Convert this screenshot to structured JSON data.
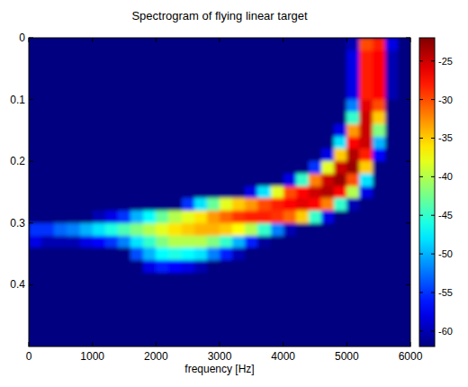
{
  "chart_data": {
    "type": "heatmap",
    "title": "Spectrogram of flying linear target",
    "xlabel": "frequency [Hz]",
    "xlim": [
      0,
      6000
    ],
    "xticks": [
      0,
      1000,
      2000,
      3000,
      4000,
      5000,
      6000
    ],
    "ylim": [
      0.5,
      0
    ],
    "yticks": [
      0,
      0.1,
      0.2,
      0.3,
      0.4
    ],
    "colorbar": {
      "range": [
        -62,
        -22
      ],
      "ticks": [
        -60,
        -55,
        -50,
        -45,
        -40,
        -35,
        -30,
        -25
      ]
    },
    "cells": [
      [
        -62,
        -62,
        -62,
        -62,
        -62,
        -62,
        -62,
        -62,
        -62,
        -62,
        -62,
        -62,
        -62,
        -62,
        -62,
        -62,
        -62,
        -62,
        -62,
        -62,
        -62,
        -62,
        -62,
        -62,
        -62,
        -60,
        -30,
        -28,
        -58,
        -62
      ],
      [
        -62,
        -62,
        -62,
        -62,
        -62,
        -62,
        -62,
        -62,
        -62,
        -62,
        -62,
        -62,
        -62,
        -62,
        -62,
        -62,
        -62,
        -62,
        -62,
        -62,
        -62,
        -62,
        -62,
        -62,
        -62,
        -58,
        -28,
        -27,
        -60,
        -62
      ],
      [
        -62,
        -62,
        -62,
        -62,
        -62,
        -62,
        -62,
        -62,
        -62,
        -62,
        -62,
        -62,
        -62,
        -62,
        -62,
        -62,
        -62,
        -62,
        -62,
        -62,
        -62,
        -62,
        -62,
        -62,
        -62,
        -58,
        -28,
        -27,
        -60,
        -62
      ],
      [
        -62,
        -62,
        -62,
        -62,
        -62,
        -62,
        -62,
        -62,
        -62,
        -62,
        -62,
        -62,
        -62,
        -62,
        -62,
        -62,
        -62,
        -62,
        -62,
        -62,
        -62,
        -62,
        -62,
        -62,
        -62,
        -58,
        -28,
        -27,
        -60,
        -62
      ],
      [
        -62,
        -62,
        -62,
        -62,
        -62,
        -62,
        -62,
        -62,
        -62,
        -62,
        -62,
        -62,
        -62,
        -62,
        -62,
        -62,
        -62,
        -62,
        -62,
        -62,
        -62,
        -62,
        -62,
        -62,
        -62,
        -58,
        -28,
        -27,
        -60,
        -62
      ],
      [
        -62,
        -62,
        -62,
        -62,
        -62,
        -62,
        -62,
        -62,
        -62,
        -62,
        -62,
        -62,
        -62,
        -62,
        -62,
        -62,
        -62,
        -62,
        -62,
        -62,
        -62,
        -62,
        -62,
        -62,
        -62,
        -52,
        -26,
        -30,
        -62,
        -62
      ],
      [
        -62,
        -62,
        -62,
        -62,
        -62,
        -62,
        -62,
        -62,
        -62,
        -62,
        -62,
        -62,
        -62,
        -62,
        -62,
        -62,
        -62,
        -62,
        -62,
        -62,
        -62,
        -62,
        -62,
        -62,
        -62,
        -45,
        -25,
        -35,
        -62,
        -62
      ],
      [
        -62,
        -62,
        -62,
        -62,
        -62,
        -62,
        -62,
        -62,
        -62,
        -62,
        -62,
        -62,
        -62,
        -62,
        -62,
        -62,
        -62,
        -62,
        -62,
        -62,
        -62,
        -62,
        -62,
        -62,
        -58,
        -33,
        -25,
        -42,
        -62,
        -62
      ],
      [
        -62,
        -62,
        -62,
        -62,
        -62,
        -62,
        -62,
        -62,
        -62,
        -62,
        -62,
        -62,
        -62,
        -62,
        -62,
        -62,
        -62,
        -62,
        -62,
        -62,
        -62,
        -62,
        -62,
        -62,
        -48,
        -27,
        -25,
        -50,
        -62,
        -62
      ],
      [
        -62,
        -62,
        -62,
        -62,
        -62,
        -62,
        -62,
        -62,
        -62,
        -62,
        -62,
        -62,
        -62,
        -62,
        -62,
        -62,
        -62,
        -62,
        -62,
        -62,
        -62,
        -62,
        -62,
        -58,
        -35,
        -24,
        -28,
        -57,
        -62,
        -62
      ],
      [
        -62,
        -62,
        -62,
        -62,
        -62,
        -62,
        -62,
        -62,
        -62,
        -62,
        -62,
        -62,
        -62,
        -62,
        -62,
        -62,
        -62,
        -62,
        -62,
        -62,
        -62,
        -62,
        -55,
        -38,
        -25,
        -23,
        -35,
        -62,
        -62,
        -62
      ],
      [
        -62,
        -62,
        -62,
        -62,
        -62,
        -62,
        -62,
        -62,
        -62,
        -62,
        -62,
        -62,
        -62,
        -62,
        -62,
        -62,
        -62,
        -62,
        -62,
        -62,
        -58,
        -45,
        -32,
        -25,
        -23,
        -30,
        -48,
        -62,
        -62,
        -62
      ],
      [
        -62,
        -62,
        -62,
        -62,
        -62,
        -62,
        -62,
        -62,
        -62,
        -62,
        -62,
        -62,
        -62,
        -62,
        -62,
        -62,
        -62,
        -58,
        -48,
        -38,
        -30,
        -27,
        -25,
        -24,
        -27,
        -40,
        -58,
        -62,
        -62,
        -62
      ],
      [
        -62,
        -62,
        -62,
        -62,
        -62,
        -62,
        -62,
        -62,
        -62,
        -62,
        -62,
        -62,
        -55,
        -48,
        -43,
        -38,
        -35,
        -33,
        -30,
        -28,
        -27,
        -26,
        -27,
        -32,
        -45,
        -60,
        -62,
        -62,
        -62,
        -62
      ],
      [
        -62,
        -62,
        -62,
        -62,
        -62,
        -60,
        -58,
        -55,
        -50,
        -47,
        -43,
        -40,
        -38,
        -36,
        -33,
        -31,
        -29,
        -28,
        -28,
        -29,
        -31,
        -35,
        -45,
        -58,
        -62,
        -62,
        -62,
        -62,
        -62,
        -62
      ],
      [
        -55,
        -55,
        -53,
        -52,
        -50,
        -48,
        -46,
        -44,
        -42,
        -40,
        -38,
        -36,
        -35,
        -34,
        -34,
        -35,
        -37,
        -40,
        -45,
        -52,
        -60,
        -62,
        -62,
        -62,
        -62,
        -62,
        -62,
        -62,
        -62,
        -62
      ],
      [
        -58,
        -60,
        -60,
        -60,
        -58,
        -57,
        -55,
        -52,
        -48,
        -45,
        -42,
        -40,
        -40,
        -40,
        -42,
        -45,
        -50,
        -56,
        -61,
        -62,
        -62,
        -62,
        -62,
        -62,
        -62,
        -62,
        -62,
        -62,
        -62,
        -62
      ],
      [
        -62,
        -62,
        -62,
        -62,
        -62,
        -62,
        -62,
        -62,
        -54,
        -50,
        -47,
        -46,
        -47,
        -48,
        -52,
        -56,
        -60,
        -62,
        -62,
        -62,
        -62,
        -62,
        -62,
        -62,
        -62,
        -62,
        -62,
        -62,
        -62,
        -62
      ],
      [
        -62,
        -62,
        -62,
        -62,
        -62,
        -62,
        -62,
        -62,
        -62,
        -58,
        -56,
        -57,
        -58,
        -60,
        -62,
        -62,
        -62,
        -62,
        -62,
        -62,
        -62,
        -62,
        -62,
        -62,
        -62,
        -62,
        -62,
        -62,
        -62,
        -62
      ],
      [
        -62,
        -62,
        -62,
        -62,
        -62,
        -62,
        -62,
        -62,
        -62,
        -62,
        -62,
        -62,
        -62,
        -62,
        -62,
        -62,
        -62,
        -62,
        -62,
        -62,
        -62,
        -62,
        -62,
        -62,
        -62,
        -62,
        -62,
        -62,
        -62,
        -62
      ],
      [
        -62,
        -62,
        -62,
        -62,
        -62,
        -62,
        -62,
        -62,
        -62,
        -62,
        -62,
        -62,
        -62,
        -62,
        -62,
        -62,
        -62,
        -62,
        -62,
        -62,
        -62,
        -62,
        -62,
        -62,
        -62,
        -62,
        -62,
        -62,
        -62,
        -62
      ],
      [
        -62,
        -62,
        -62,
        -62,
        -62,
        -62,
        -62,
        -62,
        -62,
        -62,
        -62,
        -62,
        -62,
        -62,
        -62,
        -62,
        -62,
        -62,
        -62,
        -62,
        -62,
        -62,
        -62,
        -62,
        -62,
        -62,
        -62,
        -62,
        -62,
        -62
      ],
      [
        -62,
        -62,
        -62,
        -62,
        -62,
        -62,
        -62,
        -62,
        -62,
        -62,
        -62,
        -62,
        -62,
        -62,
        -62,
        -62,
        -62,
        -62,
        -62,
        -62,
        -62,
        -62,
        -62,
        -62,
        -62,
        -62,
        -62,
        -62,
        -62,
        -62
      ],
      [
        -62,
        -62,
        -62,
        -62,
        -62,
        -62,
        -62,
        -62,
        -62,
        -62,
        -62,
        -62,
        -62,
        -62,
        -62,
        -62,
        -62,
        -62,
        -62,
        -62,
        -62,
        -62,
        -62,
        -62,
        -62,
        -62,
        -62,
        -62,
        -62,
        -62
      ],
      [
        -62,
        -62,
        -62,
        -62,
        -62,
        -62,
        -62,
        -62,
        -62,
        -62,
        -62,
        -62,
        -62,
        -62,
        -62,
        -62,
        -62,
        -62,
        -62,
        -62,
        -62,
        -62,
        -62,
        -62,
        -62,
        -62,
        -62,
        -62,
        -62,
        -62
      ]
    ]
  }
}
